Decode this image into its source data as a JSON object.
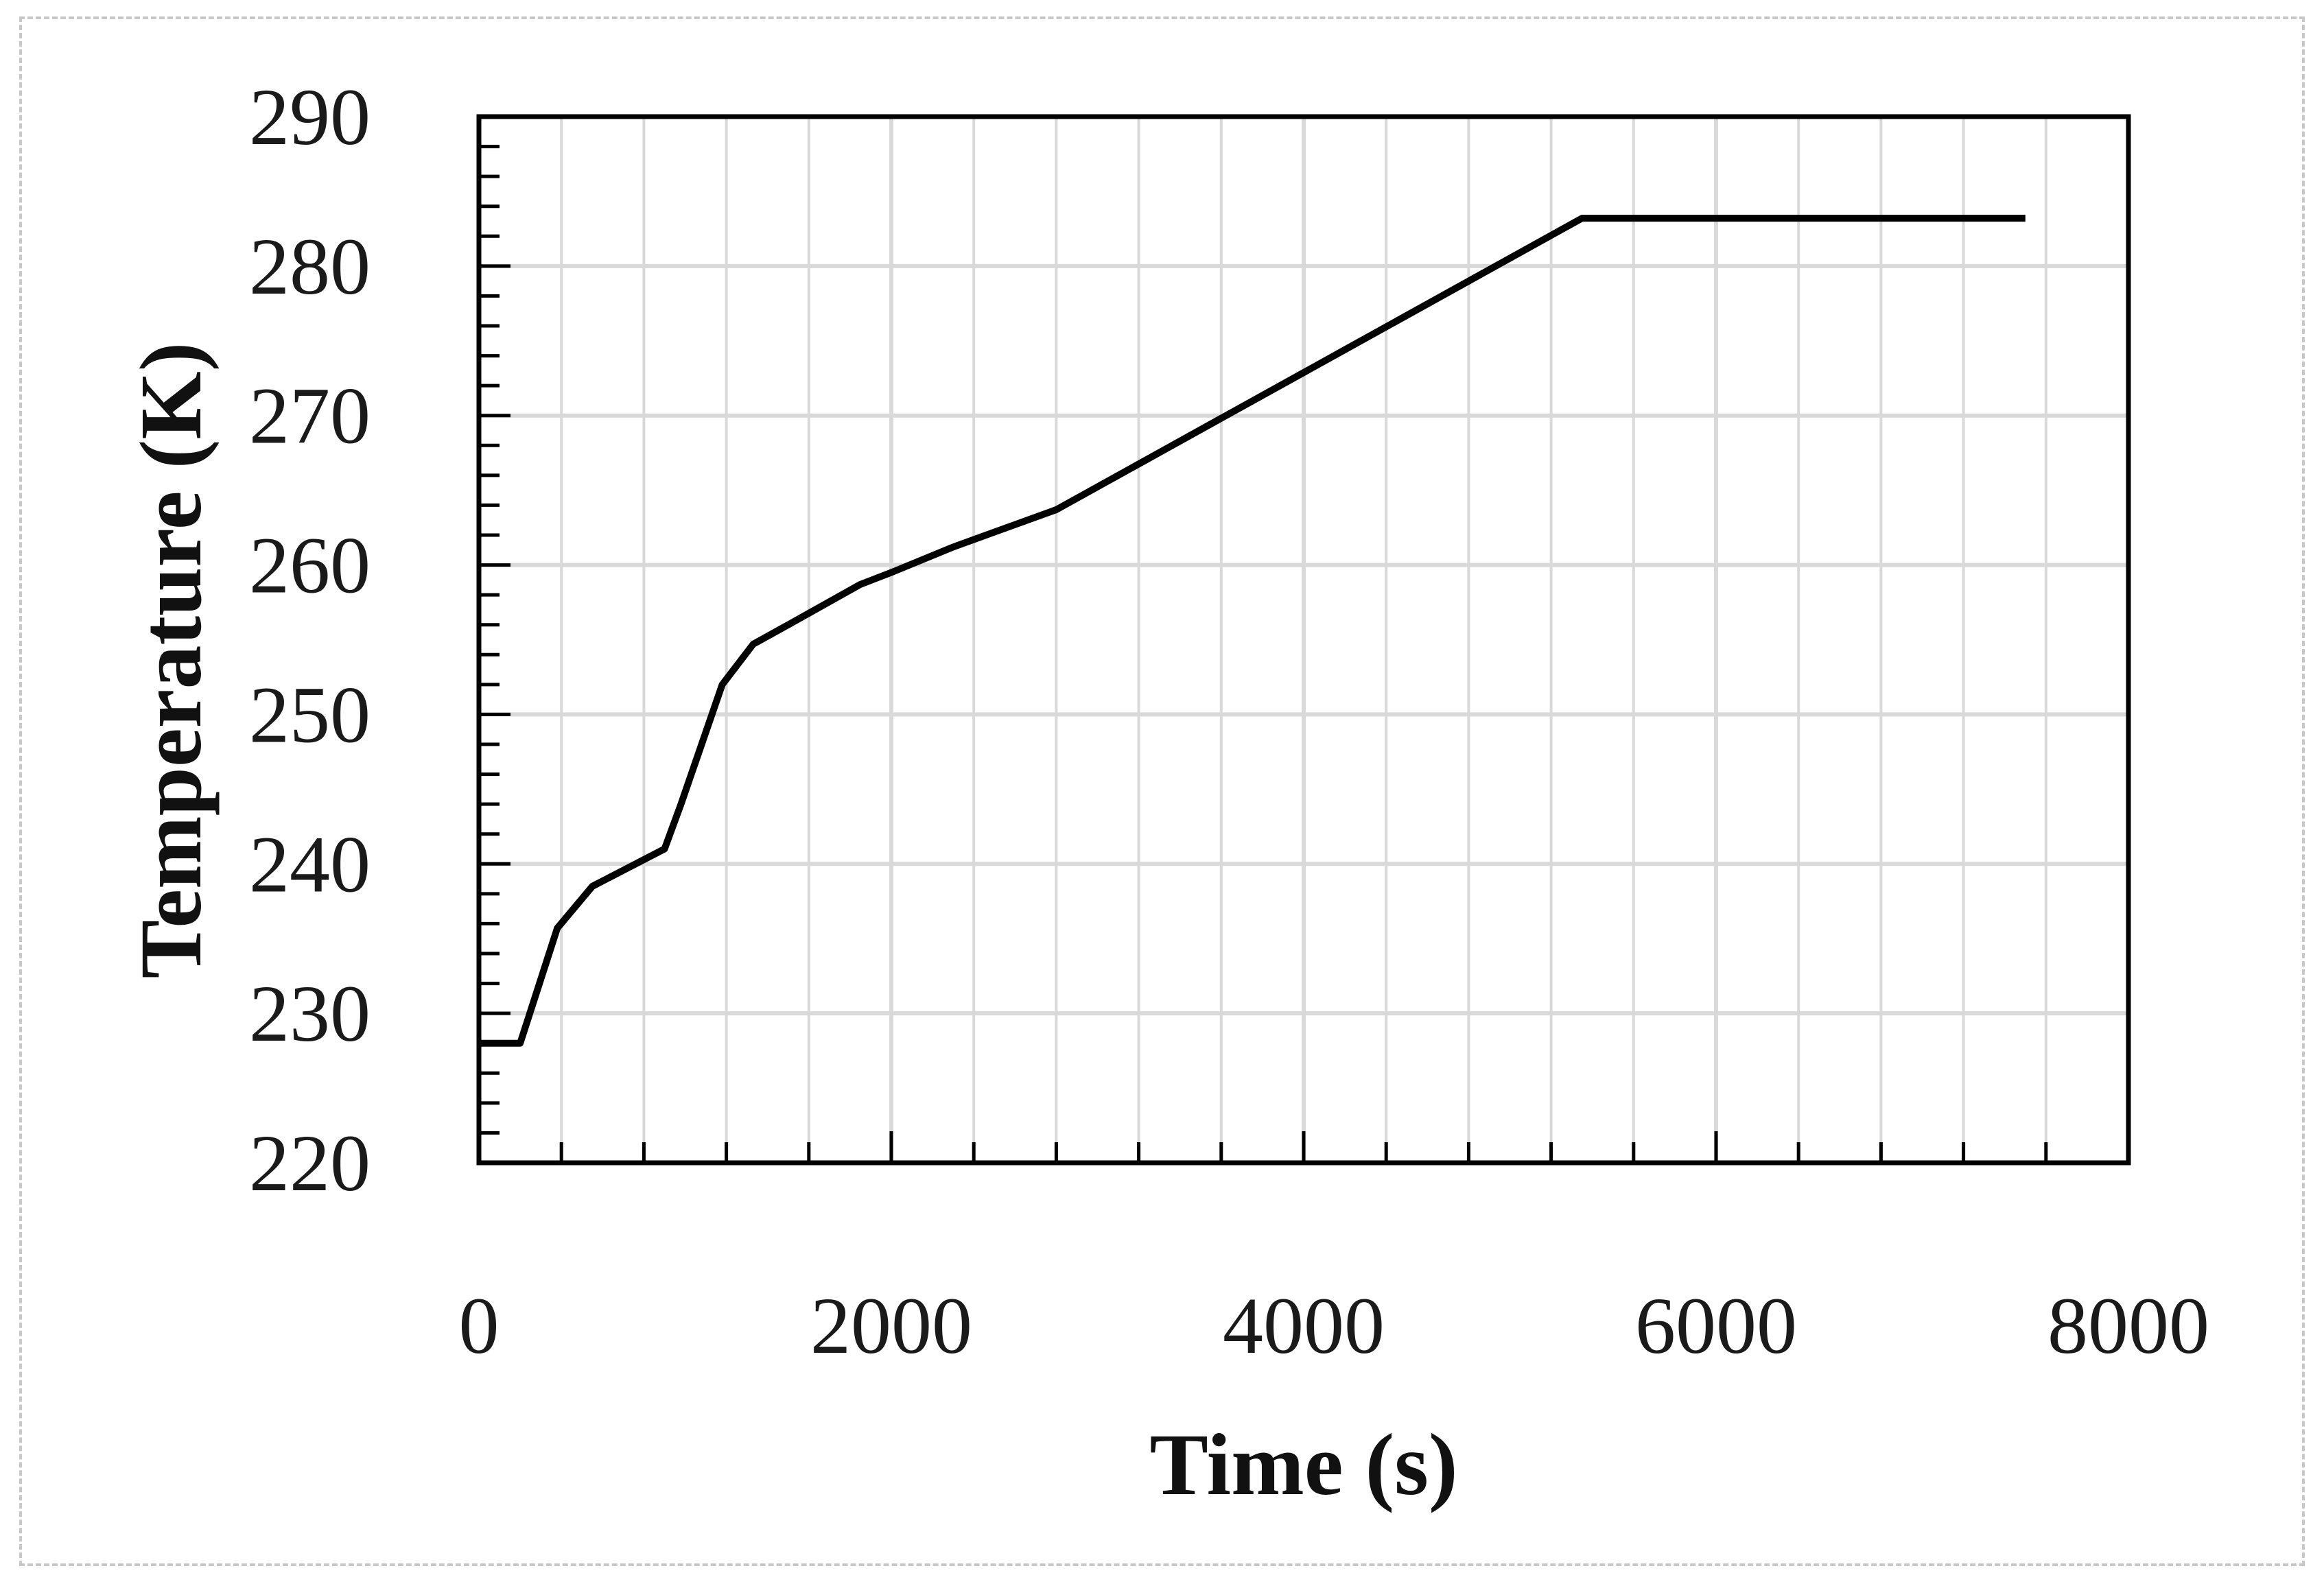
{
  "chart_data": {
    "type": "line",
    "title": "",
    "xlabel": "Time (s)",
    "ylabel": "Temperature (K)",
    "xlim": [
      0,
      8000
    ],
    "ylim": [
      220,
      290
    ],
    "xticks": [
      0,
      2000,
      4000,
      6000,
      8000
    ],
    "yticks": [
      220,
      230,
      240,
      250,
      260,
      270,
      280,
      290
    ],
    "x_minor_step": 400,
    "y_minor_step": 2,
    "grid": true,
    "legend": "none",
    "colors": {
      "line": "#000000",
      "grid": "#d9d9d9",
      "axes": "#000000"
    },
    "series": [
      {
        "x": [
          0,
          200,
          380,
          550,
          900,
          980,
          1180,
          1330,
          1500,
          1850,
          2000,
          2300,
          2500,
          2800,
          5350,
          7500
        ],
        "y": [
          228,
          228,
          235.7,
          238.5,
          241,
          244,
          252,
          254.7,
          256,
          258.7,
          259.5,
          261.2,
          262.2,
          263.7,
          283.2,
          283.2
        ]
      }
    ]
  }
}
